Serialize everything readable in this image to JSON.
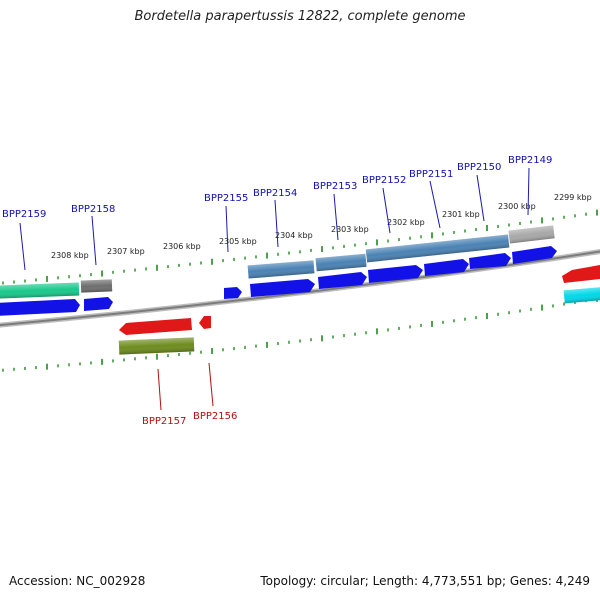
{
  "title": "Bordetella parapertussis 12822, complete genome",
  "footer": {
    "accession": "Accession: NC_002928",
    "topology": "Topology: circular; Length: 4,773,551 bp; Genes: 4,249"
  },
  "scale_labels": [
    "2308 kbp",
    "2307 kbp",
    "2306 kbp",
    "2305 kbp",
    "2304 kbp",
    "2303 kbp",
    "2302 kbp",
    "2301 kbp",
    "2300 kbp",
    "2299 kbp"
  ],
  "gene_labels_top": [
    "BPP2159",
    "BPP2158",
    "BPP2155",
    "BPP2154",
    "BPP2153",
    "BPP2152",
    "BPP2151",
    "BPP2150",
    "BPP2149"
  ],
  "gene_labels_bottom": [
    "BPP2157",
    "BPP2156"
  ],
  "colors": {
    "backbone": "#8a8a8a",
    "ticks": "#1e8a1e",
    "cds": "#1212e6",
    "gene_steelblue": "#4a82b4",
    "gene_teal": "#19c88c",
    "gene_gray": "#6e6e6e",
    "gene_lightgray": "#a8a8a8",
    "gene_red": "#e01818",
    "gene_olive": "#6e8c1e",
    "gene_cyan": "#00d8e8",
    "label_top": "#1010b0",
    "label_bottom": "#b01010"
  }
}
